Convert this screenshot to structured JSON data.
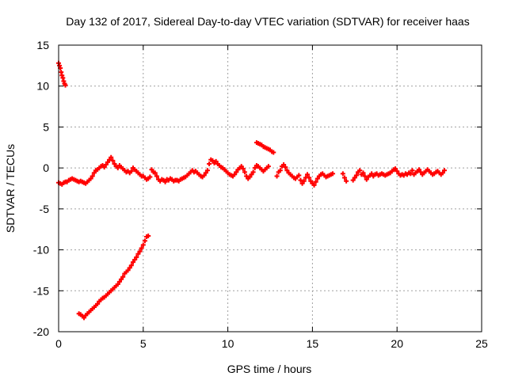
{
  "chart_data": {
    "type": "scatter",
    "title": "Day 132 of 2017, Sidereal Day-to-day VTEC variation (SDTVAR) for receiver haas",
    "xlabel": "GPS time / hours",
    "ylabel": "SDTVAR / TECUs",
    "xlim": [
      0,
      25
    ],
    "ylim": [
      -20,
      15
    ],
    "xticks": [
      0,
      5,
      10,
      15,
      20,
      25
    ],
    "yticks": [
      -20,
      -15,
      -10,
      -5,
      0,
      5,
      10,
      15
    ],
    "grid": true,
    "marker": "+",
    "series_color": "#ff0000",
    "series": [
      {
        "name": "main-trace",
        "points": [
          [
            0.0,
            -1.8
          ],
          [
            0.1,
            -1.9
          ],
          [
            0.2,
            -2.0
          ],
          [
            0.3,
            -1.8
          ],
          [
            0.4,
            -1.7
          ],
          [
            0.5,
            -1.7
          ],
          [
            0.6,
            -1.5
          ],
          [
            0.7,
            -1.4
          ],
          [
            0.8,
            -1.3
          ],
          [
            0.9,
            -1.4
          ],
          [
            1.0,
            -1.5
          ],
          [
            1.1,
            -1.6
          ],
          [
            1.2,
            -1.7
          ],
          [
            1.3,
            -1.6
          ],
          [
            1.4,
            -1.7
          ],
          [
            1.5,
            -1.8
          ],
          [
            1.6,
            -1.9
          ],
          [
            1.7,
            -1.7
          ],
          [
            1.8,
            -1.5
          ],
          [
            1.9,
            -1.3
          ],
          [
            2.0,
            -1.0
          ],
          [
            2.1,
            -0.6
          ],
          [
            2.2,
            -0.3
          ],
          [
            2.3,
            -0.2
          ],
          [
            2.4,
            0.0
          ],
          [
            2.5,
            0.2
          ],
          [
            2.6,
            0.3
          ],
          [
            2.7,
            0.1
          ],
          [
            2.8,
            0.4
          ],
          [
            2.9,
            0.7
          ],
          [
            3.0,
            1.0
          ],
          [
            3.1,
            1.3
          ],
          [
            3.2,
            0.9
          ],
          [
            3.3,
            0.5
          ],
          [
            3.4,
            0.2
          ],
          [
            3.5,
            0.0
          ],
          [
            3.6,
            0.3
          ],
          [
            3.7,
            0.1
          ],
          [
            3.8,
            -0.1
          ],
          [
            3.9,
            -0.3
          ],
          [
            4.0,
            -0.5
          ],
          [
            4.1,
            -0.4
          ],
          [
            4.2,
            -0.6
          ],
          [
            4.3,
            -0.4
          ],
          [
            4.4,
            0.0
          ],
          [
            4.5,
            -0.2
          ],
          [
            4.6,
            -0.4
          ],
          [
            4.7,
            -0.6
          ],
          [
            4.8,
            -0.8
          ],
          [
            4.9,
            -1.0
          ],
          [
            5.0,
            -1.0
          ],
          [
            5.1,
            -1.2
          ],
          [
            5.2,
            -1.4
          ],
          [
            5.3,
            -1.3
          ],
          [
            5.4,
            -1.1
          ],
          [
            5.5,
            -0.2
          ],
          [
            5.6,
            -0.5
          ],
          [
            5.7,
            -0.6
          ],
          [
            5.8,
            -1.0
          ],
          [
            5.9,
            -1.4
          ],
          [
            6.0,
            -1.6
          ],
          [
            6.1,
            -1.4
          ],
          [
            6.2,
            -1.5
          ],
          [
            6.3,
            -1.7
          ],
          [
            6.4,
            -1.4
          ],
          [
            6.5,
            -1.5
          ],
          [
            6.6,
            -1.3
          ],
          [
            6.7,
            -1.4
          ],
          [
            6.8,
            -1.6
          ],
          [
            6.9,
            -1.5
          ],
          [
            7.0,
            -1.5
          ],
          [
            7.1,
            -1.6
          ],
          [
            7.2,
            -1.4
          ],
          [
            7.3,
            -1.3
          ],
          [
            7.4,
            -1.2
          ],
          [
            7.5,
            -1.1
          ],
          [
            7.6,
            -0.9
          ],
          [
            7.7,
            -0.7
          ],
          [
            7.8,
            -0.5
          ],
          [
            7.9,
            -0.3
          ],
          [
            8.0,
            -0.5
          ],
          [
            8.1,
            -0.4
          ],
          [
            8.2,
            -0.6
          ],
          [
            8.3,
            -0.8
          ],
          [
            8.4,
            -1.0
          ],
          [
            8.5,
            -1.1
          ],
          [
            8.6,
            -0.9
          ],
          [
            8.7,
            -0.6
          ],
          [
            8.8,
            -0.3
          ],
          [
            8.9,
            0.5
          ],
          [
            9.0,
            1.0
          ],
          [
            9.1,
            0.9
          ],
          [
            9.2,
            0.6
          ],
          [
            9.3,
            0.8
          ],
          [
            9.4,
            0.5
          ],
          [
            9.5,
            0.3
          ],
          [
            9.6,
            0.1
          ],
          [
            9.7,
            0.0
          ],
          [
            9.8,
            -0.2
          ],
          [
            9.9,
            -0.4
          ],
          [
            10.0,
            -0.6
          ],
          [
            10.1,
            -0.8
          ],
          [
            10.2,
            -0.9
          ],
          [
            10.3,
            -1.0
          ],
          [
            10.4,
            -0.8
          ],
          [
            10.5,
            -0.5
          ],
          [
            10.6,
            -0.2
          ],
          [
            10.7,
            0.0
          ],
          [
            10.8,
            0.2
          ],
          [
            10.9,
            -0.1
          ],
          [
            11.0,
            -0.5
          ],
          [
            11.1,
            -1.0
          ],
          [
            11.2,
            -1.3
          ],
          [
            11.3,
            -1.1
          ],
          [
            11.4,
            -0.8
          ],
          [
            11.5,
            -0.5
          ],
          [
            11.6,
            0.0
          ],
          [
            11.7,
            0.3
          ],
          [
            11.8,
            0.2
          ],
          [
            11.9,
            0.0
          ],
          [
            12.0,
            -0.2
          ],
          [
            12.1,
            -0.4
          ],
          [
            12.2,
            -0.2
          ],
          [
            12.3,
            0.0
          ],
          [
            12.4,
            0.2
          ],
          [
            12.9,
            -1.0
          ],
          [
            13.0,
            -0.5
          ],
          [
            13.1,
            -0.3
          ],
          [
            13.2,
            0.2
          ],
          [
            13.3,
            0.4
          ],
          [
            13.4,
            0.1
          ],
          [
            13.5,
            -0.3
          ],
          [
            13.6,
            -0.6
          ],
          [
            13.7,
            -0.8
          ],
          [
            13.8,
            -1.0
          ],
          [
            13.9,
            -1.2
          ],
          [
            14.0,
            -1.3
          ],
          [
            14.1,
            -1.1
          ],
          [
            14.2,
            -0.9
          ],
          [
            14.3,
            -1.5
          ],
          [
            14.4,
            -1.9
          ],
          [
            14.5,
            -1.6
          ],
          [
            14.6,
            -1.2
          ],
          [
            14.7,
            -0.8
          ],
          [
            14.8,
            -1.2
          ],
          [
            14.9,
            -1.6
          ],
          [
            15.0,
            -1.9
          ],
          [
            15.1,
            -2.1
          ],
          [
            15.2,
            -1.7
          ],
          [
            15.3,
            -1.3
          ],
          [
            15.4,
            -1.0
          ],
          [
            15.5,
            -0.8
          ],
          [
            15.6,
            -0.7
          ],
          [
            15.7,
            -0.9
          ],
          [
            15.8,
            -1.1
          ],
          [
            15.9,
            -1.0
          ],
          [
            16.0,
            -0.9
          ],
          [
            16.1,
            -0.8
          ],
          [
            16.2,
            -0.7
          ],
          [
            16.8,
            -0.7
          ],
          [
            16.9,
            -1.2
          ],
          [
            17.0,
            -1.6
          ],
          [
            17.4,
            -1.5
          ],
          [
            17.5,
            -1.2
          ],
          [
            17.6,
            -0.9
          ],
          [
            17.7,
            -0.5
          ],
          [
            17.8,
            -0.3
          ],
          [
            17.9,
            -0.8
          ],
          [
            18.0,
            -0.6
          ],
          [
            18.1,
            -1.0
          ],
          [
            18.2,
            -1.4
          ],
          [
            18.3,
            -1.1
          ],
          [
            18.4,
            -0.9
          ],
          [
            18.5,
            -0.7
          ],
          [
            18.6,
            -1.0
          ],
          [
            18.7,
            -0.8
          ],
          [
            18.8,
            -0.7
          ],
          [
            18.9,
            -0.9
          ],
          [
            19.0,
            -0.8
          ],
          [
            19.1,
            -0.7
          ],
          [
            19.2,
            -0.8
          ],
          [
            19.3,
            -0.9
          ],
          [
            19.4,
            -0.8
          ],
          [
            19.5,
            -0.7
          ],
          [
            19.6,
            -0.6
          ],
          [
            19.7,
            -0.4
          ],
          [
            19.8,
            -0.2
          ],
          [
            19.9,
            -0.1
          ],
          [
            20.0,
            -0.4
          ],
          [
            20.1,
            -0.7
          ],
          [
            20.2,
            -0.9
          ],
          [
            20.3,
            -0.8
          ],
          [
            20.4,
            -0.9
          ],
          [
            20.5,
            -0.7
          ],
          [
            20.6,
            -0.8
          ],
          [
            20.7,
            -0.6
          ],
          [
            20.8,
            -0.7
          ],
          [
            20.9,
            -0.3
          ],
          [
            21.0,
            -0.8
          ],
          [
            21.1,
            -0.6
          ],
          [
            21.2,
            -0.4
          ],
          [
            21.3,
            -0.2
          ],
          [
            21.4,
            -0.5
          ],
          [
            21.5,
            -0.8
          ],
          [
            21.6,
            -0.6
          ],
          [
            21.7,
            -0.4
          ],
          [
            21.8,
            -0.2
          ],
          [
            21.9,
            -0.4
          ],
          [
            22.0,
            -0.6
          ],
          [
            22.1,
            -0.8
          ],
          [
            22.2,
            -0.7
          ],
          [
            22.3,
            -0.5
          ],
          [
            22.4,
            -0.4
          ],
          [
            22.5,
            -0.6
          ],
          [
            22.6,
            -0.8
          ],
          [
            22.7,
            -0.6
          ],
          [
            22.8,
            -0.3
          ]
        ]
      },
      {
        "name": "lower-branch",
        "points": [
          [
            5.3,
            -8.3
          ],
          [
            5.2,
            -8.4
          ],
          [
            5.1,
            -8.9
          ],
          [
            5.0,
            -9.4
          ],
          [
            4.9,
            -9.8
          ],
          [
            4.8,
            -10.2
          ],
          [
            4.7,
            -10.5
          ],
          [
            4.6,
            -10.9
          ],
          [
            4.5,
            -11.2
          ],
          [
            4.4,
            -11.5
          ],
          [
            4.3,
            -11.9
          ],
          [
            4.2,
            -12.2
          ],
          [
            4.1,
            -12.5
          ],
          [
            4.0,
            -12.7
          ],
          [
            3.9,
            -12.9
          ],
          [
            3.8,
            -13.3
          ],
          [
            3.7,
            -13.6
          ],
          [
            3.6,
            -13.9
          ],
          [
            3.5,
            -14.2
          ],
          [
            3.4,
            -14.4
          ],
          [
            3.3,
            -14.6
          ],
          [
            3.2,
            -14.8
          ],
          [
            3.1,
            -15.0
          ],
          [
            3.0,
            -15.2
          ],
          [
            2.9,
            -15.4
          ],
          [
            2.8,
            -15.6
          ],
          [
            2.7,
            -15.8
          ],
          [
            2.6,
            -15.9
          ],
          [
            2.5,
            -16.1
          ],
          [
            2.4,
            -16.3
          ],
          [
            2.3,
            -16.6
          ],
          [
            2.2,
            -16.8
          ],
          [
            2.1,
            -17.0
          ],
          [
            2.0,
            -17.2
          ],
          [
            1.9,
            -17.4
          ],
          [
            1.8,
            -17.6
          ],
          [
            1.7,
            -17.8
          ],
          [
            1.6,
            -18.0
          ],
          [
            1.5,
            -18.3
          ],
          [
            1.4,
            -18.1
          ],
          [
            1.3,
            -17.9
          ],
          [
            1.2,
            -17.8
          ]
        ]
      },
      {
        "name": "top-left-fragment",
        "points": [
          [
            0.0,
            12.8
          ],
          [
            0.05,
            12.5
          ],
          [
            0.1,
            12.2
          ],
          [
            0.15,
            11.7
          ],
          [
            0.2,
            11.3
          ],
          [
            0.25,
            11.0
          ],
          [
            0.3,
            10.6
          ],
          [
            0.35,
            10.3
          ],
          [
            0.4,
            10.1
          ]
        ]
      },
      {
        "name": "mid-fragment",
        "points": [
          [
            11.7,
            3.1
          ],
          [
            11.8,
            3.0
          ],
          [
            11.9,
            2.9
          ],
          [
            12.0,
            2.8
          ],
          [
            12.1,
            2.6
          ],
          [
            12.2,
            2.5
          ],
          [
            12.3,
            2.4
          ],
          [
            12.4,
            2.3
          ],
          [
            12.5,
            2.2
          ],
          [
            12.6,
            2.0
          ],
          [
            12.7,
            1.9
          ]
        ]
      }
    ]
  }
}
